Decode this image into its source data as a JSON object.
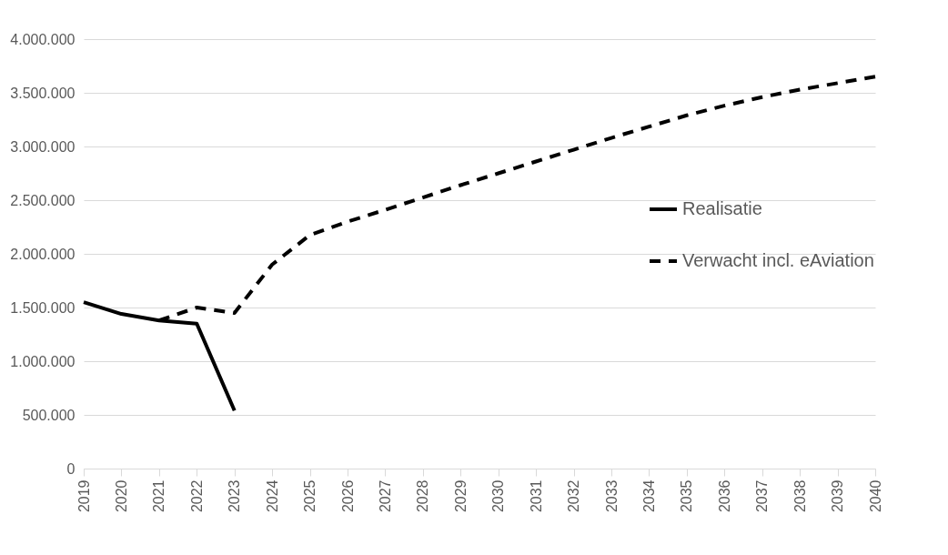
{
  "chart_data": {
    "type": "line",
    "categories": [
      "2019",
      "2020",
      "2021",
      "2022",
      "2023",
      "2024",
      "2025",
      "2026",
      "2027",
      "2028",
      "2029",
      "2030",
      "2031",
      "2032",
      "2033",
      "2034",
      "2035",
      "2036",
      "2037",
      "2038",
      "2039",
      "2040"
    ],
    "series": [
      {
        "name": "Realisatie",
        "color": "#000000",
        "line_style": "solid",
        "values": [
          1550000,
          1440000,
          1380000,
          1350000,
          540000,
          null,
          null,
          null,
          null,
          null,
          null,
          null,
          null,
          null,
          null,
          null,
          null,
          null,
          null,
          null,
          null,
          null
        ]
      },
      {
        "name": "Verwacht incl. eAviation",
        "color": "#000000",
        "line_style": "dashed",
        "values": [
          null,
          null,
          1380000,
          1500000,
          1450000,
          1900000,
          2175000,
          2300000,
          2410000,
          2525000,
          2640000,
          2750000,
          2860000,
          2970000,
          3080000,
          3185000,
          3290000,
          3380000,
          3460000,
          3530000,
          3590000,
          3650000
        ]
      }
    ],
    "ylim": [
      0,
      4000000
    ],
    "yticks": [
      0,
      {
        "value": 500000,
        "label": "500.000"
      },
      {
        "value": 1000000,
        "label": "1.000.000"
      },
      {
        "value": 1500000,
        "label": "1.500.000"
      },
      {
        "value": 2000000,
        "label": "2.000.000"
      },
      {
        "value": 2500000,
        "label": "2.500.000"
      },
      {
        "value": 3000000,
        "label": "3.000.000"
      },
      {
        "value": 3500000,
        "label": "3.500.000"
      },
      {
        "value": 4000000,
        "label": "4.000.000"
      }
    ],
    "grid": "y",
    "legend": "right"
  }
}
